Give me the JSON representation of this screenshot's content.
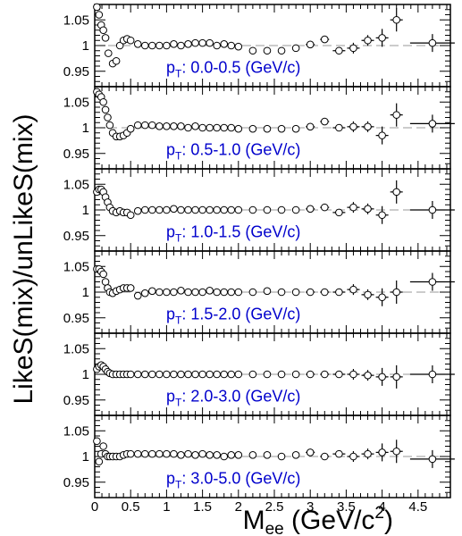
{
  "chart_data": {
    "type": "scatter",
    "ylabel": "LikeS(mix)/unLikeS(mix)",
    "xlabel": {
      "prefix": "M",
      "sub": "ee",
      "middle": " (GeV/c",
      "sup": "2",
      "suffix": ")"
    },
    "xlim": [
      0,
      4.95
    ],
    "ylim": [
      0.92,
      1.08
    ],
    "x_ticks": [
      "0",
      "0.5",
      "1",
      "1.5",
      "2",
      "2.5",
      "3",
      "3.5",
      "4",
      "4.5"
    ],
    "y_ticks": [
      "1.05",
      "1",
      "0.95"
    ],
    "reference_line": 1.0,
    "panels": [
      {
        "label": {
          "p": "p",
          "sub": "T",
          "range": ": 0.0-0.5 (GeV/c)"
        },
        "points": [
          [
            0.03,
            1.075
          ],
          [
            0.06,
            1.06
          ],
          [
            0.09,
            1.04
          ],
          [
            0.12,
            1.03
          ],
          [
            0.15,
            1.015
          ],
          [
            0.19,
            0.985
          ],
          [
            0.25,
            0.965
          ],
          [
            0.3,
            0.97
          ],
          [
            0.35,
            1.0
          ],
          [
            0.4,
            1.01
          ],
          [
            0.45,
            1.013
          ],
          [
            0.5,
            1.01
          ],
          [
            0.6,
            1.003
          ],
          [
            0.7,
            1.0
          ],
          [
            0.8,
            1.0
          ],
          [
            0.9,
            1.0
          ],
          [
            1.0,
            1.0
          ],
          [
            1.1,
            1.003
          ],
          [
            1.2,
            1.0
          ],
          [
            1.3,
            1.003
          ],
          [
            1.4,
            1.005
          ],
          [
            1.5,
            1.005
          ],
          [
            1.6,
            1.005
          ],
          [
            1.7,
            1.0
          ],
          [
            1.8,
            1.003
          ],
          [
            1.9,
            1.0
          ],
          [
            2.0,
            0.998
          ],
          [
            2.2,
            0.99
          ],
          [
            2.4,
            0.99
          ],
          [
            2.6,
            0.99
          ],
          [
            2.8,
            0.995
          ],
          [
            3.0,
            1.002
          ],
          [
            3.2,
            1.012
          ],
          [
            3.4,
            0.99
          ],
          [
            3.6,
            0.995
          ],
          [
            3.8,
            1.01
          ],
          [
            4.0,
            1.015
          ],
          [
            4.2,
            1.05
          ],
          [
            4.7,
            1.005
          ]
        ]
      },
      {
        "label": {
          "p": "p",
          "sub": "T",
          "range": ": 0.5-1.0 (GeV/c)"
        },
        "points": [
          [
            0.03,
            1.07
          ],
          [
            0.06,
            1.065
          ],
          [
            0.09,
            1.06
          ],
          [
            0.12,
            1.05
          ],
          [
            0.15,
            1.035
          ],
          [
            0.18,
            1.02
          ],
          [
            0.21,
            1.005
          ],
          [
            0.25,
            0.99
          ],
          [
            0.3,
            0.983
          ],
          [
            0.35,
            0.983
          ],
          [
            0.4,
            0.985
          ],
          [
            0.45,
            0.99
          ],
          [
            0.5,
            0.998
          ],
          [
            0.6,
            1.005
          ],
          [
            0.7,
            1.005
          ],
          [
            0.8,
            1.005
          ],
          [
            0.9,
            1.003
          ],
          [
            1.0,
            1.003
          ],
          [
            1.1,
            1.003
          ],
          [
            1.2,
            1.003
          ],
          [
            1.3,
            1.0
          ],
          [
            1.4,
            1.003
          ],
          [
            1.5,
            1.0
          ],
          [
            1.6,
            1.0
          ],
          [
            1.7,
            1.0
          ],
          [
            1.8,
            1.0
          ],
          [
            1.9,
            1.0
          ],
          [
            2.0,
            0.998
          ],
          [
            2.2,
            0.998
          ],
          [
            2.4,
            0.998
          ],
          [
            2.6,
            0.998
          ],
          [
            2.8,
            0.998
          ],
          [
            3.0,
            1.002
          ],
          [
            3.2,
            1.012
          ],
          [
            3.4,
            1.0
          ],
          [
            3.6,
            1.002
          ],
          [
            3.8,
            1.002
          ],
          [
            4.0,
            0.985
          ],
          [
            4.2,
            1.025
          ],
          [
            4.7,
            1.008
          ]
        ]
      },
      {
        "label": {
          "p": "p",
          "sub": "T",
          "range": ": 1.0-1.5 (GeV/c)"
        },
        "points": [
          [
            0.03,
            1.035
          ],
          [
            0.06,
            1.04
          ],
          [
            0.09,
            1.04
          ],
          [
            0.12,
            1.035
          ],
          [
            0.15,
            1.025
          ],
          [
            0.18,
            1.015
          ],
          [
            0.21,
            1.005
          ],
          [
            0.25,
            0.998
          ],
          [
            0.3,
            0.995
          ],
          [
            0.35,
            0.998
          ],
          [
            0.4,
            0.995
          ],
          [
            0.45,
            0.995
          ],
          [
            0.5,
            0.99
          ],
          [
            0.6,
            0.998
          ],
          [
            0.7,
            1.0
          ],
          [
            0.8,
            1.0
          ],
          [
            0.9,
            1.0
          ],
          [
            1.0,
            1.0
          ],
          [
            1.1,
            1.002
          ],
          [
            1.2,
            1.0
          ],
          [
            1.3,
            1.0
          ],
          [
            1.4,
            1.0
          ],
          [
            1.5,
            1.0
          ],
          [
            1.6,
            1.0
          ],
          [
            1.7,
            1.0
          ],
          [
            1.8,
            1.0
          ],
          [
            1.9,
            1.0
          ],
          [
            2.0,
            1.0
          ],
          [
            2.2,
            1.0
          ],
          [
            2.4,
            1.0
          ],
          [
            2.6,
            1.0
          ],
          [
            2.8,
            1.0
          ],
          [
            3.0,
            1.002
          ],
          [
            3.2,
            1.005
          ],
          [
            3.4,
            0.995
          ],
          [
            3.6,
            1.005
          ],
          [
            3.8,
            1.002
          ],
          [
            4.0,
            0.99
          ],
          [
            4.2,
            1.035
          ],
          [
            4.7,
            1.0
          ]
        ]
      },
      {
        "label": {
          "p": "p",
          "sub": "T",
          "range": ": 1.5-2.0 (GeV/c)"
        },
        "points": [
          [
            0.03,
            1.045
          ],
          [
            0.06,
            1.045
          ],
          [
            0.09,
            1.04
          ],
          [
            0.12,
            1.035
          ],
          [
            0.15,
            1.02
          ],
          [
            0.18,
            1.008
          ],
          [
            0.21,
            1.0
          ],
          [
            0.25,
            0.998
          ],
          [
            0.3,
            1.002
          ],
          [
            0.35,
            1.005
          ],
          [
            0.4,
            1.008
          ],
          [
            0.45,
            1.008
          ],
          [
            0.5,
            1.008
          ],
          [
            0.6,
            0.993
          ],
          [
            0.7,
            0.998
          ],
          [
            0.8,
            1.002
          ],
          [
            0.9,
            1.0
          ],
          [
            1.0,
            1.0
          ],
          [
            1.1,
            1.0
          ],
          [
            1.2,
            1.003
          ],
          [
            1.3,
            1.0
          ],
          [
            1.4,
            1.0
          ],
          [
            1.5,
            1.0
          ],
          [
            1.6,
            1.003
          ],
          [
            1.7,
            1.0
          ],
          [
            1.8,
            1.0
          ],
          [
            1.9,
            1.0
          ],
          [
            2.0,
            1.0
          ],
          [
            2.2,
            1.0
          ],
          [
            2.4,
            1.002
          ],
          [
            2.6,
            1.0
          ],
          [
            2.8,
            1.0
          ],
          [
            3.0,
            1.0
          ],
          [
            3.2,
            1.0
          ],
          [
            3.4,
            1.0
          ],
          [
            3.6,
            1.005
          ],
          [
            3.8,
            0.995
          ],
          [
            4.0,
            0.99
          ],
          [
            4.2,
            1.0
          ],
          [
            4.7,
            1.02
          ]
        ]
      },
      {
        "label": {
          "p": "p",
          "sub": "T",
          "range": ": 2.0-3.0 (GeV/c)"
        },
        "points": [
          [
            0.03,
            1.01
          ],
          [
            0.06,
            1.015
          ],
          [
            0.09,
            1.018
          ],
          [
            0.12,
            1.015
          ],
          [
            0.15,
            1.01
          ],
          [
            0.18,
            1.005
          ],
          [
            0.21,
            1.002
          ],
          [
            0.25,
            1.0
          ],
          [
            0.3,
            1.0
          ],
          [
            0.35,
            1.0
          ],
          [
            0.4,
            1.0
          ],
          [
            0.45,
            1.0
          ],
          [
            0.5,
            1.0
          ],
          [
            0.6,
            1.0
          ],
          [
            0.7,
            1.0
          ],
          [
            0.8,
            1.0
          ],
          [
            0.9,
            1.0
          ],
          [
            1.0,
            1.0
          ],
          [
            1.1,
            1.0
          ],
          [
            1.2,
            1.0
          ],
          [
            1.3,
            1.0
          ],
          [
            1.4,
            1.0
          ],
          [
            1.5,
            1.0
          ],
          [
            1.6,
            1.0
          ],
          [
            1.7,
            1.0
          ],
          [
            1.8,
            1.0
          ],
          [
            1.9,
            1.0
          ],
          [
            2.0,
            1.0
          ],
          [
            2.2,
            1.0
          ],
          [
            2.4,
            1.0
          ],
          [
            2.6,
            1.0
          ],
          [
            2.8,
            1.0
          ],
          [
            3.0,
            1.0
          ],
          [
            3.2,
            1.0
          ],
          [
            3.4,
            1.0
          ],
          [
            3.6,
            1.0
          ],
          [
            3.8,
            0.998
          ],
          [
            4.0,
            0.995
          ],
          [
            4.2,
            0.995
          ],
          [
            4.7,
            1.0
          ]
        ]
      },
      {
        "label": {
          "p": "p",
          "sub": "T",
          "range": ": 3.0-5.0 (GeV/c)"
        },
        "points": [
          [
            0.03,
            1.03
          ],
          [
            0.06,
            0.99
          ],
          [
            0.09,
            1.005
          ],
          [
            0.12,
            1.02
          ],
          [
            0.15,
            1.005
          ],
          [
            0.18,
            1.0
          ],
          [
            0.21,
            1.0
          ],
          [
            0.25,
            1.0
          ],
          [
            0.3,
            1.0
          ],
          [
            0.35,
            1.0
          ],
          [
            0.4,
            1.003
          ],
          [
            0.45,
            1.005
          ],
          [
            0.5,
            1.005
          ],
          [
            0.6,
            1.005
          ],
          [
            0.7,
            1.005
          ],
          [
            0.8,
            1.005
          ],
          [
            0.9,
            1.005
          ],
          [
            1.0,
            1.005
          ],
          [
            1.1,
            1.005
          ],
          [
            1.2,
            1.003
          ],
          [
            1.3,
            1.005
          ],
          [
            1.4,
            1.003
          ],
          [
            1.5,
            1.005
          ],
          [
            1.6,
            1.003
          ],
          [
            1.7,
            1.003
          ],
          [
            1.8,
            1.0
          ],
          [
            1.9,
            1.003
          ],
          [
            2.0,
            1.003
          ],
          [
            2.2,
            1.003
          ],
          [
            2.4,
            1.003
          ],
          [
            2.6,
            1.0
          ],
          [
            2.8,
            1.003
          ],
          [
            3.0,
            1.008
          ],
          [
            3.2,
            1.0
          ],
          [
            3.4,
            1.005
          ],
          [
            3.6,
            1.0
          ],
          [
            3.8,
            1.005
          ],
          [
            4.0,
            1.008
          ],
          [
            4.2,
            1.01
          ],
          [
            4.7,
            0.995
          ]
        ]
      }
    ]
  }
}
